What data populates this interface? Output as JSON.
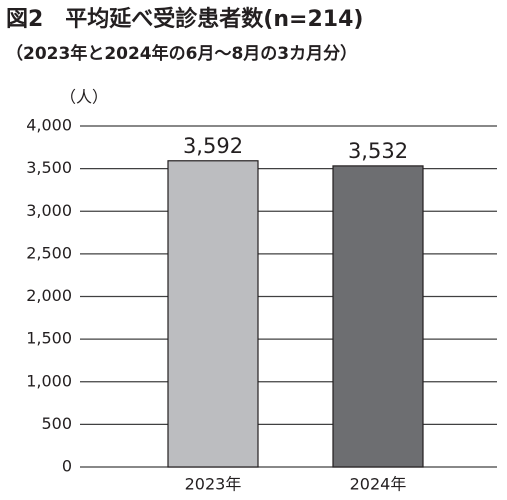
{
  "chart_data": {
    "type": "bar",
    "title": "図2　平均延べ受診患者数(n=214)",
    "subtitle": "（2023年と2024年の6月～8月の3カ月分）",
    "y_label": "（人）",
    "categories": [
      "2023年",
      "2024年"
    ],
    "values": [
      3592,
      3532
    ],
    "value_labels": [
      "3,592",
      "3,532"
    ],
    "colors": [
      "#bcbdc0",
      "#6d6e71"
    ],
    "edgecolor": "#231f20",
    "ylim": [
      0,
      4000
    ],
    "yticks": [
      0,
      500,
      {
        "value": 1000,
        "label": "1,000"
      },
      {
        "value": 1500,
        "label": "1,500"
      },
      {
        "value": 2000,
        "label": "2,000"
      },
      {
        "value": 2500,
        "label": "2,500"
      },
      {
        "value": 3000,
        "label": "3,000"
      },
      {
        "value": 3500,
        "label": "3,500"
      },
      {
        "value": 4000,
        "label": "4,000"
      }
    ],
    "grid": true
  }
}
